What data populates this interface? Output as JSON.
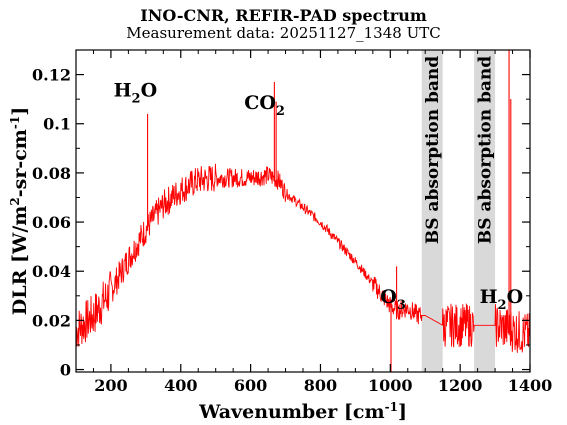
{
  "chart_data": {
    "type": "line",
    "title": "INO-CNR, REFIR-PAD spectrum",
    "subtitle": "Measurement data: 20251127_1348 UTC",
    "xlabel": "Wavenumber [cm",
    "xlabel_sup": "-1",
    "xlabel_end": "]",
    "ylabel": "DLR [W/m",
    "ylabel_sup1": "2",
    "ylabel_mid": "-sr-cm",
    "ylabel_sup2": "-1",
    "ylabel_end": "]",
    "xlim": [
      100,
      1400
    ],
    "ylim": [
      -0.001,
      0.13
    ],
    "xticks": [
      200,
      400,
      600,
      800,
      1000,
      1200,
      1400
    ],
    "xtick_labels": [
      "200",
      "400",
      "600",
      "800",
      "1000",
      "1200",
      "1400"
    ],
    "yticks": [
      0,
      0.02,
      0.04,
      0.06,
      0.08,
      0.1,
      0.12
    ],
    "ytick_labels": [
      "0",
      "0.02",
      "0.04",
      "0.06",
      "0.08",
      "0.1",
      "0.12"
    ],
    "grid": false,
    "line_color": "#ff0000",
    "band_color": "#d9d9d9",
    "bands": [
      {
        "x0": 1090,
        "x1": 1150,
        "label": "BS absorption band"
      },
      {
        "x0": 1240,
        "x1": 1300,
        "label": "BS absorption band"
      }
    ],
    "annotations": [
      {
        "text": "H",
        "sub": "2",
        "end": "O",
        "x": 270,
        "y": 0.111
      },
      {
        "text": "CO",
        "sub": "2",
        "end": "",
        "x": 640,
        "y": 0.106
      },
      {
        "text": "O",
        "sub": "3",
        "end": "",
        "x": 1008,
        "y": 0.027
      },
      {
        "text": "H",
        "sub": "2",
        "end": "O",
        "x": 1318,
        "y": 0.027
      }
    ],
    "series": [
      {
        "x": [
          100,
          150,
          200,
          250,
          300,
          350,
          400,
          450,
          500,
          550,
          600,
          650,
          680,
          700,
          750,
          800,
          850,
          900,
          950,
          1000,
          1020,
          1050,
          1080,
          1100,
          1150,
          1200,
          1250,
          1300,
          1350,
          1400
        ],
        "y": [
          0.016,
          0.022,
          0.032,
          0.045,
          0.057,
          0.067,
          0.073,
          0.077,
          0.078,
          0.078,
          0.078,
          0.079,
          0.077,
          0.072,
          0.066,
          0.06,
          0.052,
          0.044,
          0.035,
          0.026,
          0.024,
          0.025,
          0.022,
          0.022,
          0.018,
          0.018,
          0.018,
          0.018,
          0.016,
          0.014
        ]
      }
    ],
    "spikes": [
      {
        "x": 305,
        "y": 0.104
      },
      {
        "x": 668,
        "y": 0.117
      },
      {
        "x": 673,
        "y": 0.109
      },
      {
        "x": 1018,
        "y": 0.042
      },
      {
        "x": 1340,
        "y": 0.13
      },
      {
        "x": 1345,
        "y": 0.11
      },
      {
        "x": 1002,
        "y": -0.001
      }
    ]
  }
}
